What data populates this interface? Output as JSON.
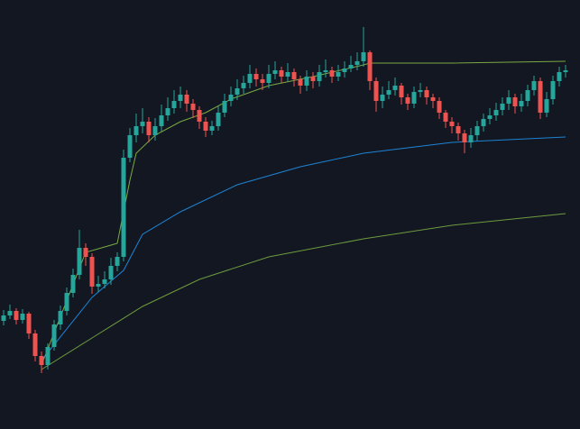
{
  "chart_data": {
    "type": "candlestick",
    "ylim": [
      0,
      476
    ],
    "up_color": "#26a69a",
    "down_color": "#ef5350",
    "candles": {
      "open": [
        120,
        126,
        131,
        121,
        128,
        106,
        81,
        71,
        91,
        116,
        131,
        151,
        171,
        201,
        191,
        158,
        161,
        166,
        181,
        191,
        301,
        326,
        336,
        341,
        326,
        336,
        348,
        356,
        364,
        371,
        361,
        354,
        341,
        331,
        336,
        351,
        364,
        371,
        378,
        384,
        394,
        388,
        384,
        394,
        398,
        391,
        396,
        388,
        381,
        391,
        386,
        396,
        398,
        391,
        396,
        400,
        404,
        408,
        418,
        386,
        364,
        371,
        376,
        381,
        368,
        361,
        374,
        376,
        368,
        364,
        351,
        341,
        336,
        328,
        318,
        326,
        336,
        344,
        348,
        354,
        361,
        368,
        358,
        364,
        376,
        386,
        351,
        366,
        386,
        396
      ],
      "high": [
        132,
        138,
        134,
        133,
        130,
        110,
        86,
        95,
        121,
        137,
        157,
        178,
        221,
        206,
        195,
        170,
        175,
        190,
        196,
        310,
        334,
        350,
        356,
        346,
        345,
        360,
        368,
        376,
        380,
        376,
        366,
        358,
        346,
        342,
        358,
        372,
        380,
        388,
        392,
        404,
        400,
        394,
        404,
        408,
        402,
        406,
        400,
        392,
        398,
        396,
        404,
        410,
        402,
        404,
        408,
        414,
        418,
        446,
        420,
        390,
        380,
        386,
        390,
        384,
        372,
        380,
        384,
        380,
        372,
        368,
        354,
        346,
        340,
        332,
        334,
        342,
        350,
        356,
        362,
        368,
        376,
        372,
        372,
        382,
        392,
        390,
        374,
        392,
        402,
        404
      ],
      "low": [
        115,
        122,
        116,
        117,
        100,
        75,
        62,
        66,
        87,
        110,
        126,
        146,
        166,
        181,
        150,
        152,
        156,
        160,
        175,
        186,
        296,
        318,
        328,
        318,
        320,
        330,
        342,
        350,
        356,
        352,
        345,
        333,
        324,
        326,
        331,
        346,
        358,
        365,
        372,
        378,
        380,
        376,
        378,
        388,
        384,
        386,
        380,
        372,
        375,
        378,
        380,
        390,
        384,
        386,
        390,
        396,
        398,
        402,
        376,
        352,
        356,
        366,
        370,
        360,
        354,
        356,
        368,
        360,
        356,
        344,
        334,
        328,
        320,
        306,
        312,
        320,
        330,
        338,
        342,
        348,
        354,
        350,
        352,
        358,
        370,
        344,
        346,
        360,
        380,
        390
      ],
      "close": [
        126,
        131,
        121,
        128,
        106,
        81,
        71,
        91,
        116,
        131,
        151,
        171,
        201,
        191,
        158,
        161,
        166,
        181,
        191,
        301,
        326,
        336,
        341,
        326,
        336,
        348,
        356,
        364,
        371,
        361,
        354,
        341,
        331,
        336,
        351,
        364,
        371,
        378,
        384,
        394,
        388,
        384,
        394,
        398,
        391,
        396,
        388,
        381,
        391,
        386,
        396,
        398,
        391,
        396,
        400,
        404,
        408,
        418,
        386,
        364,
        371,
        376,
        381,
        368,
        361,
        374,
        376,
        368,
        364,
        351,
        341,
        336,
        328,
        318,
        326,
        336,
        344,
        348,
        354,
        361,
        368,
        358,
        364,
        376,
        386,
        351,
        366,
        386,
        396,
        398
      ]
    },
    "bands": [
      {
        "color": "#8bc34a",
        "x": [
          6,
          13,
          18,
          20,
          21,
          24,
          28,
          32,
          36,
          42,
          49,
          57,
          58,
          71,
          89
        ],
        "values": [
          71,
          196,
          206,
          276,
          306,
          326,
          341,
          351,
          366,
          381,
          391,
          404,
          406,
          406,
          408
        ]
      },
      {
        "color": "#2196f3",
        "x": [
          6,
          14,
          19,
          22,
          28,
          37,
          47,
          57,
          71,
          89
        ],
        "values": [
          76,
          146,
          176,
          216,
          241,
          271,
          291,
          306,
          318,
          324
        ]
      },
      {
        "color": "#7cb342",
        "x": [
          6,
          14,
          22,
          31,
          42,
          57,
          71,
          89
        ],
        "values": [
          66,
          101,
          136,
          166,
          191,
          211,
          226,
          239
        ]
      }
    ]
  }
}
